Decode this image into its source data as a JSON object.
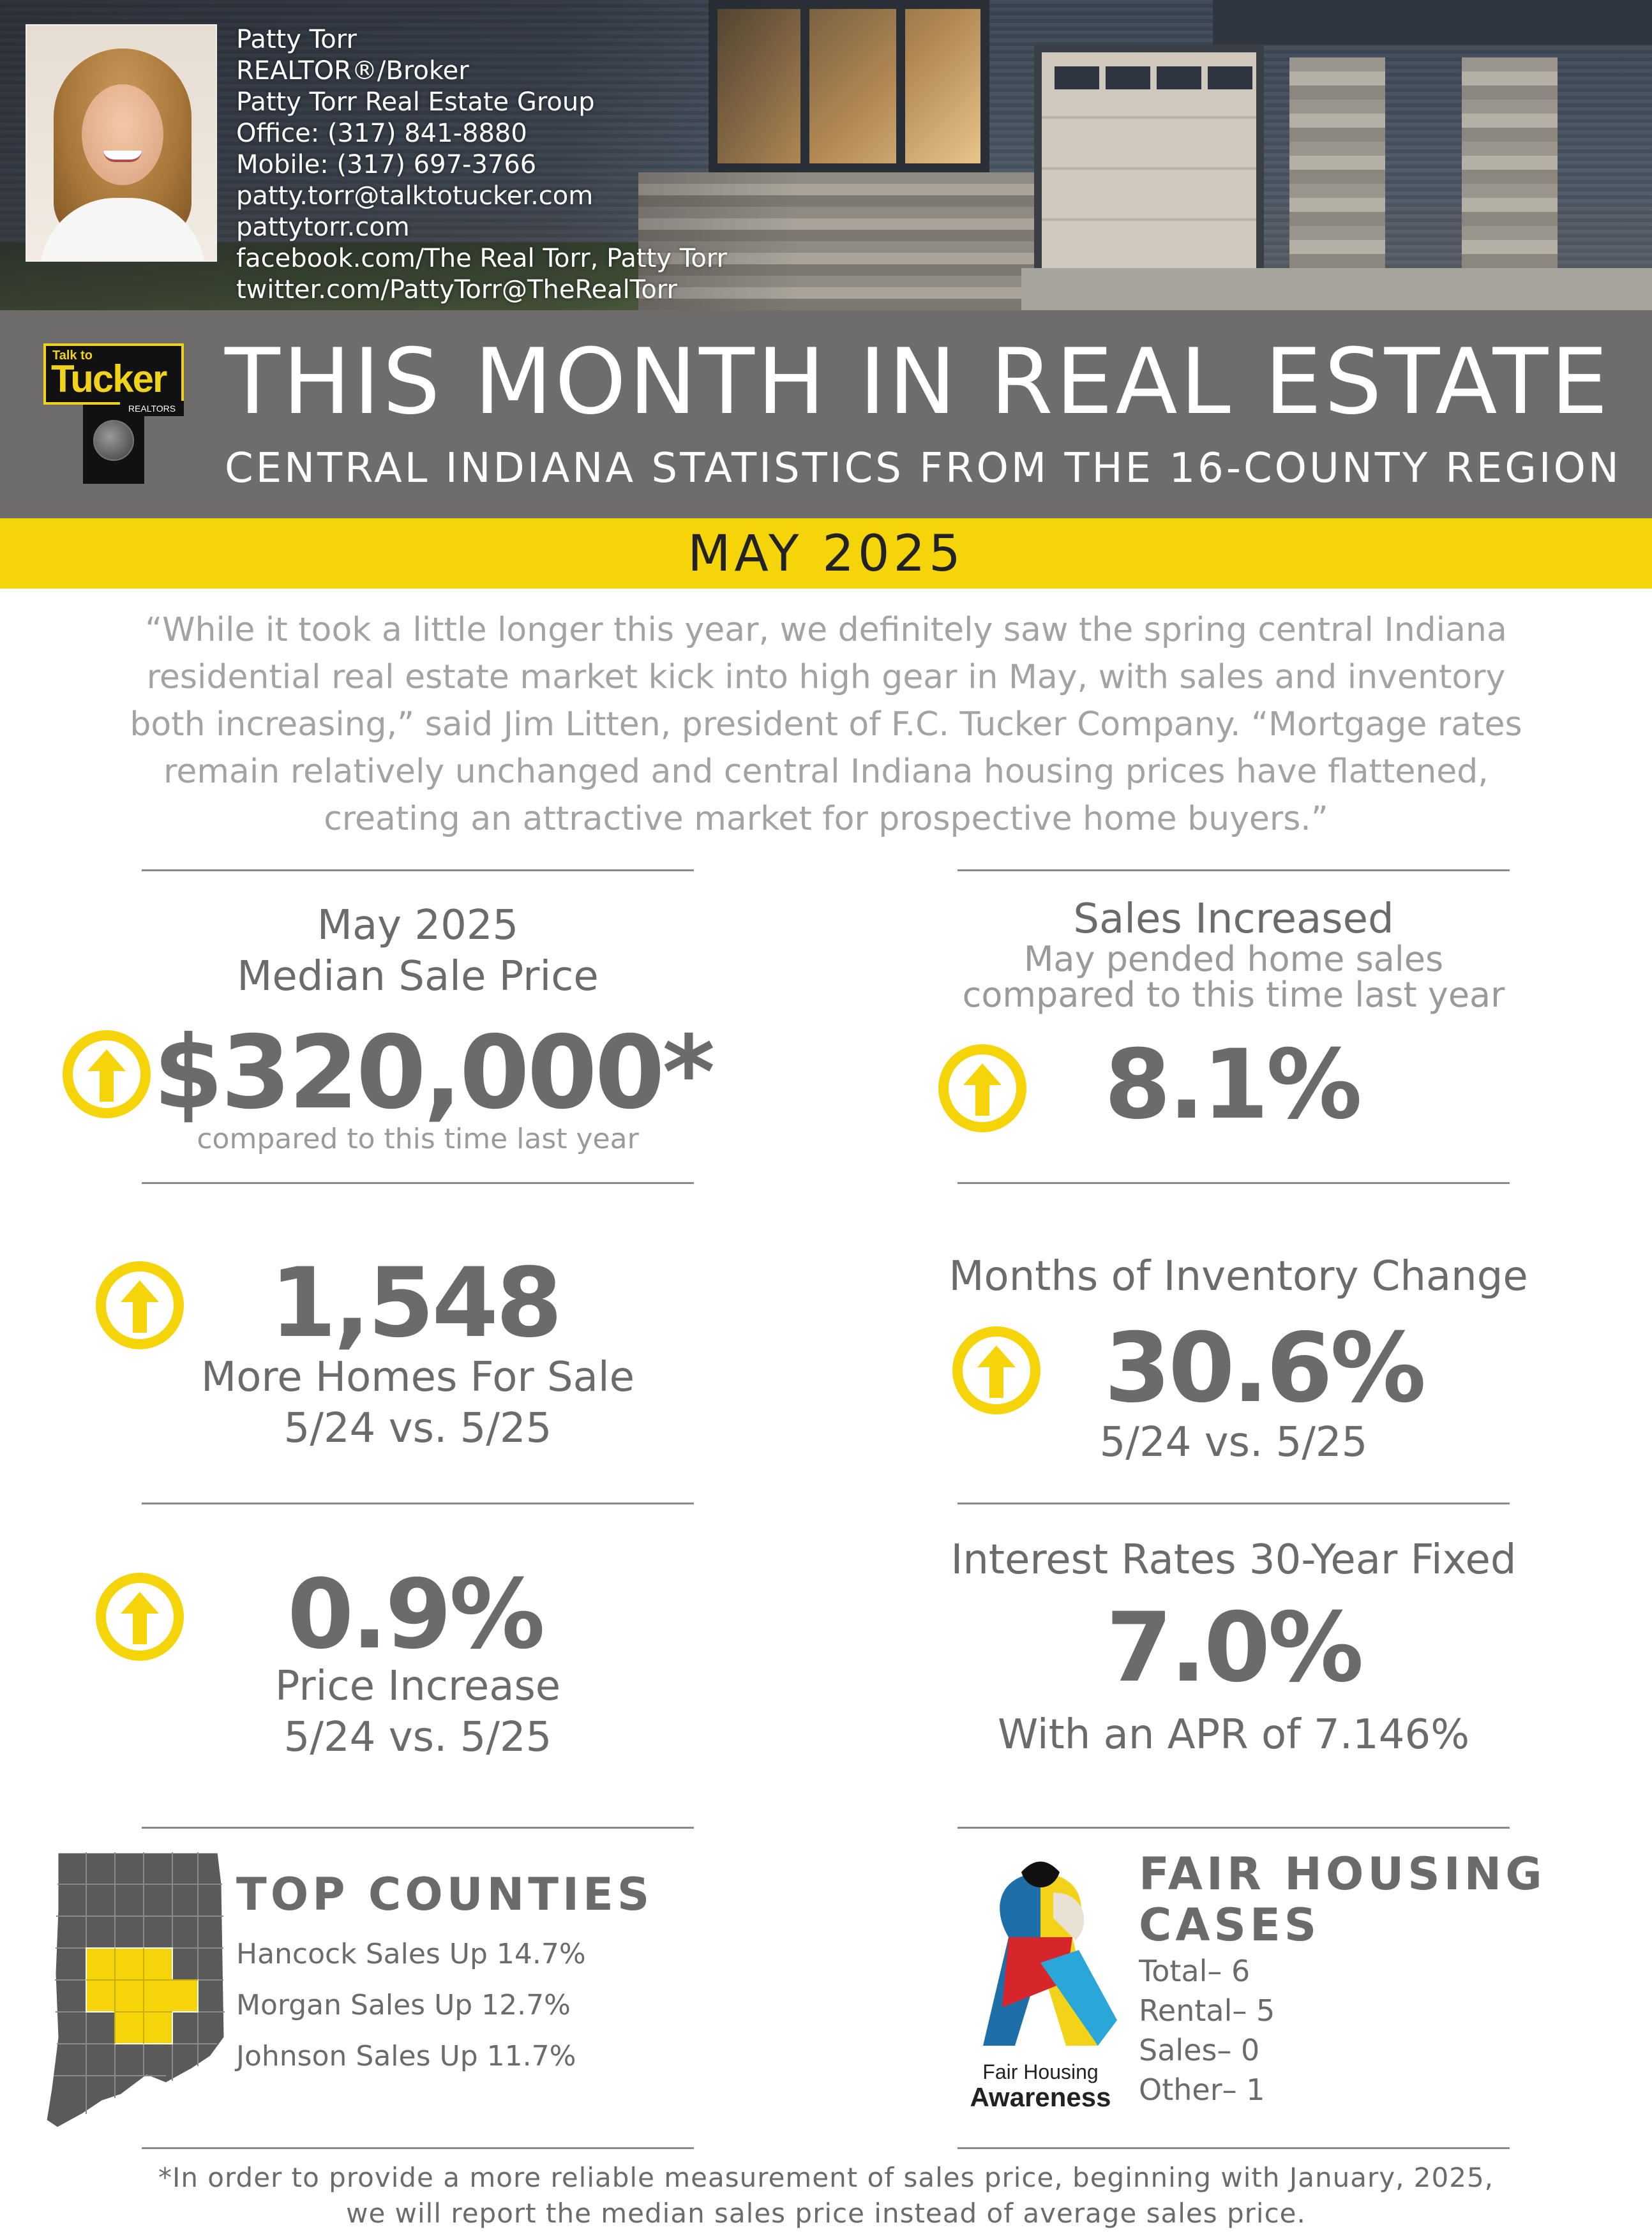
{
  "agent": {
    "lines": [
      "Patty Torr",
      "REALTOR®/Broker",
      "Patty Torr Real Estate Group",
      "Office: (317) 841-8880",
      "Mobile: (317) 697-3766",
      "patty.torr@talktotucker.com",
      "pattytorr.com",
      "facebook.com/The Real Torr, Patty Torr",
      "twitter.com/PattyTorr@TheRealTorr"
    ]
  },
  "logo": {
    "small": "Talk to",
    "big": "Tucker",
    "sub": "REALTORS"
  },
  "header": {
    "title": "THIS MONTH IN REAL ESTATE",
    "subtitle": "CENTRAL INDIANA STATISTICS FROM THE 16-COUNTY REGION",
    "date": "MAY 2025"
  },
  "quote": "“While it took a little longer this year, we definitely saw the spring central Indiana residential real estate market kick into high gear in May, with sales and inventory both increasing,” said Jim Litten, president of F.C. Tucker Company. “Mortgage rates remain relatively unchanged and central Indiana housing prices have flattened, creating an attractive market for prospective home buyers.”",
  "stats": {
    "median": {
      "title1": "May 2025",
      "title2": "Median Sale Price",
      "value": "$320,000*",
      "note": "compared to this time last year",
      "trend_icon": "up-arrow-icon"
    },
    "sales": {
      "title": "Sales Increased",
      "sub1": "May pended home sales",
      "sub2": "compared to this time last year",
      "value": "8.1%",
      "trend_icon": "up-arrow-icon"
    },
    "homes": {
      "value": "1,548",
      "label": "More Homes For Sale",
      "period": "5/24 vs. 5/25",
      "trend_icon": "up-arrow-icon"
    },
    "inventory": {
      "title": "Months of Inventory Change",
      "value": "30.6%",
      "period": "5/24 vs. 5/25",
      "trend_icon": "up-arrow-icon"
    },
    "price": {
      "value": "0.9%",
      "label": "Price Increase",
      "period": "5/24 vs. 5/25",
      "trend_icon": "up-arrow-icon"
    },
    "rates": {
      "title": "Interest Rates 30-Year Fixed",
      "value": "7.0%",
      "apr": "With an APR of 7.146%"
    }
  },
  "top_counties": {
    "title": "TOP COUNTIES",
    "items": [
      "Hancock Sales Up 14.7%",
      "Morgan Sales Up 12.7%",
      "Johnson Sales Up 11.7%"
    ]
  },
  "fair_housing": {
    "title1": "FAIR HOUSING",
    "title2": "CASES",
    "items": [
      "Total– 6",
      "Rental– 5",
      "Sales– 0",
      "Other– 1"
    ],
    "ribbon_caption1": "Fair Housing",
    "ribbon_caption2": "Awareness"
  },
  "footnote": {
    "line1": "*In order to provide a more reliable measurement of sales price, beginning with January, 2025,",
    "line2": "we will report the median sales price instead of average sales price."
  },
  "colors": {
    "accent_yellow": "#f5d409",
    "banner_grey": "#6f6d6b",
    "text_grey": "#6b6b6b"
  }
}
